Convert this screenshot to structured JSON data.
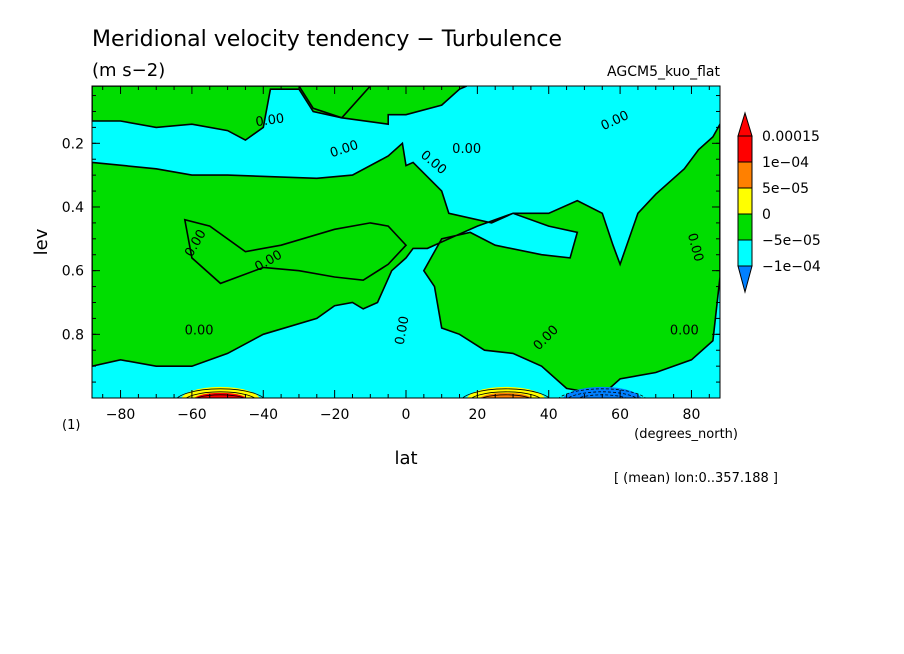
{
  "chart_data": {
    "type": "heatmap",
    "title": "Meridional velocity tendency − Turbulence",
    "units": "(m s−2)",
    "dataset": "AGCM5_kuo_flat",
    "xlabel": "lat",
    "x_units": "(degrees_north)",
    "ylabel": "lev",
    "y_units": "(1)",
    "subset_note": "[ (mean) lon:0..357.188 ]",
    "xlim": [
      -88,
      88
    ],
    "ylim": [
      0.02,
      1.0
    ],
    "y_inverted": true,
    "x_ticks": [
      -80,
      -60,
      -40,
      -20,
      0,
      20,
      40,
      60,
      80
    ],
    "x_tick_labels": [
      "−80",
      "−60",
      "−40",
      "−20",
      "0",
      "20",
      "40",
      "60",
      "80"
    ],
    "y_ticks": [
      0.2,
      0.4,
      0.6,
      0.8
    ],
    "y_tick_labels": [
      "0.2",
      "0.4",
      "0.6",
      "0.8"
    ],
    "contour_label": "0.00",
    "colorbar": {
      "levels": [
        -0.0001,
        -5e-05,
        0,
        5e-05,
        0.0001,
        0.00015
      ],
      "labels": [
        "−1e−04",
        "−5e−05",
        "0",
        "5e−05",
        "1e−04",
        "0.00015"
      ],
      "colors": [
        "#0080ff",
        "#00ffff",
        "#00dd00",
        "#ffff00",
        "#ff8000",
        "#ff0000",
        "#ff0000"
      ]
    },
    "positive_regions": [
      {
        "points": [
          [
            -88,
            0.02
          ],
          [
            -88,
            0.13
          ],
          [
            -80,
            0.13
          ],
          [
            -70,
            0.15
          ],
          [
            -60,
            0.14
          ],
          [
            -50,
            0.16
          ],
          [
            -45,
            0.19
          ],
          [
            -40,
            0.15
          ],
          [
            -38,
            0.03
          ],
          [
            -30,
            0.03
          ],
          [
            -26,
            0.1
          ],
          [
            -18,
            0.12
          ],
          [
            -5,
            0.14
          ],
          [
            -5,
            0.11
          ],
          [
            0,
            0.11
          ],
          [
            10,
            0.08
          ],
          [
            15,
            0.03
          ],
          [
            17,
            0.02
          ]
        ]
      },
      {
        "points": [
          [
            -30,
            0.02
          ],
          [
            -26,
            0.09
          ],
          [
            -18,
            0.12
          ],
          [
            -10,
            0.02
          ]
        ]
      },
      {
        "points": [
          [
            -88,
            0.26
          ],
          [
            -70,
            0.28
          ],
          [
            -60,
            0.3
          ],
          [
            -50,
            0.3
          ],
          [
            -25,
            0.31
          ],
          [
            -15,
            0.3
          ],
          [
            -5,
            0.24
          ],
          [
            -1,
            0.2
          ],
          [
            0,
            0.27
          ],
          [
            2,
            0.26
          ],
          [
            10,
            0.35
          ],
          [
            12,
            0.42
          ],
          [
            24,
            0.45
          ],
          [
            30,
            0.42
          ],
          [
            40,
            0.42
          ],
          [
            48,
            0.38
          ],
          [
            55,
            0.42
          ],
          [
            58,
            0.52
          ],
          [
            60,
            0.58
          ],
          [
            65,
            0.42
          ],
          [
            70,
            0.36
          ],
          [
            78,
            0.28
          ],
          [
            82,
            0.22
          ],
          [
            86,
            0.18
          ],
          [
            88,
            0.14
          ],
          [
            88,
            0.62
          ],
          [
            86,
            0.82
          ],
          [
            80,
            0.88
          ],
          [
            70,
            0.92
          ],
          [
            60,
            0.94
          ],
          [
            55,
            0.99
          ],
          [
            45,
            0.97
          ],
          [
            38,
            0.9
          ],
          [
            30,
            0.86
          ],
          [
            22,
            0.85
          ],
          [
            15,
            0.8
          ],
          [
            10,
            0.78
          ],
          [
            8,
            0.65
          ],
          [
            5,
            0.6
          ],
          [
            10,
            0.5
          ],
          [
            18,
            0.48
          ],
          [
            25,
            0.52
          ],
          [
            38,
            0.55
          ],
          [
            46,
            0.56
          ],
          [
            48,
            0.48
          ],
          [
            40,
            0.46
          ],
          [
            30,
            0.42
          ],
          [
            20,
            0.46
          ],
          [
            12,
            0.5
          ],
          [
            6,
            0.53
          ],
          [
            2,
            0.53
          ],
          [
            0,
            0.56
          ],
          [
            -4,
            0.6
          ],
          [
            -8,
            0.7
          ],
          [
            -12,
            0.72
          ],
          [
            -15,
            0.7
          ],
          [
            -20,
            0.71
          ],
          [
            -25,
            0.75
          ],
          [
            -40,
            0.8
          ],
          [
            -50,
            0.86
          ],
          [
            -60,
            0.9
          ],
          [
            -70,
            0.9
          ],
          [
            -80,
            0.88
          ],
          [
            -88,
            0.9
          ]
        ]
      },
      {
        "points": [
          [
            -62,
            0.44
          ],
          [
            -60,
            0.56
          ],
          [
            -52,
            0.64
          ],
          [
            -40,
            0.59
          ],
          [
            -30,
            0.6
          ],
          [
            -20,
            0.62
          ],
          [
            -12,
            0.63
          ],
          [
            -5,
            0.58
          ],
          [
            0,
            0.52
          ],
          [
            -5,
            0.46
          ],
          [
            -10,
            0.45
          ],
          [
            -20,
            0.47
          ],
          [
            -35,
            0.52
          ],
          [
            -45,
            0.54
          ],
          [
            -55,
            0.46
          ]
        ]
      }
    ],
    "surface_extremes": [
      {
        "lat": -52,
        "lev": 0.99,
        "sign": "positive",
        "color": "#ff0000"
      },
      {
        "lat": 28,
        "lev": 0.99,
        "sign": "positive",
        "color": "#ff8000"
      },
      {
        "lat": 55,
        "lev": 0.99,
        "sign": "negative",
        "color": "#0080ff"
      }
    ]
  }
}
